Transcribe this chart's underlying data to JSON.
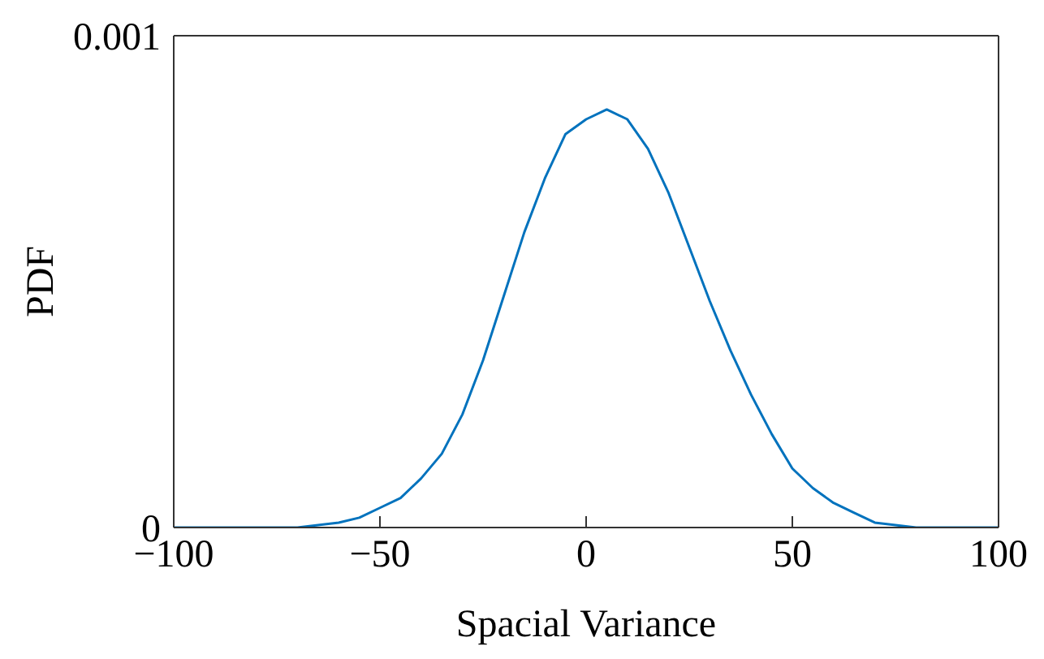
{
  "chart_data": {
    "type": "line",
    "xlabel": "Spacial Variance",
    "ylabel": "PDF",
    "x": [
      -100,
      -80,
      -70,
      -60,
      -55,
      -50,
      -45,
      -40,
      -35,
      -30,
      -25,
      -20,
      -15,
      -10,
      -5,
      0,
      5,
      10,
      15,
      20,
      25,
      30,
      35,
      40,
      45,
      50,
      55,
      60,
      65,
      70,
      80,
      90,
      100
    ],
    "series": [
      {
        "color": "#0072bd",
        "values": [
          0,
          0,
          0,
          1e-05,
          2e-05,
          4e-05,
          6e-05,
          0.0001,
          0.00015,
          0.00023,
          0.00034,
          0.00047,
          0.0006,
          0.00071,
          0.0008,
          0.00083,
          0.00085,
          0.00083,
          0.00077,
          0.00068,
          0.00057,
          0.00046,
          0.00036,
          0.00027,
          0.00019,
          0.00012,
          8e-05,
          5e-05,
          3e-05,
          1e-05,
          0,
          0,
          0
        ]
      }
    ],
    "xlim": [
      -100,
      100
    ],
    "xticks": [
      -100,
      -50,
      0,
      50,
      100
    ],
    "ylim": [
      0,
      0.001
    ],
    "yticks": [
      0,
      0.001
    ],
    "grid": false,
    "legend": false,
    "marker": "none",
    "line_style": "solid"
  }
}
